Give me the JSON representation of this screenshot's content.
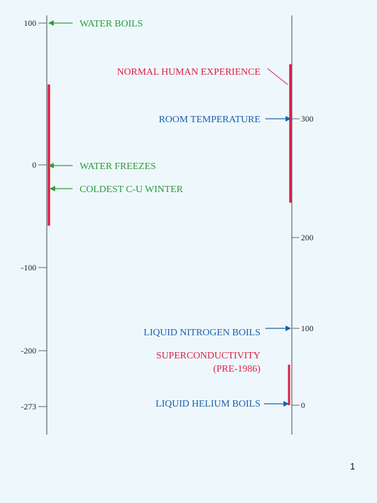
{
  "colors": {
    "green": "#2e9a3f",
    "blue": "#1b5fb0",
    "red": "#dd1f44",
    "axis": "#666666",
    "background": "#eef8fc"
  },
  "celsius_scale": {
    "ticks": [
      "100",
      "0",
      "-100",
      "-200",
      "-273"
    ],
    "labels": {
      "water_boils": "WATER BOILS",
      "water_freezes": "WATER FREEZES",
      "coldest_winter": "COLDEST C-U WINTER"
    }
  },
  "kelvin_scale": {
    "ticks": [
      "300",
      "200",
      "100",
      "0"
    ],
    "labels": {
      "normal_human_experience": "NORMAL HUMAN EXPERIENCE",
      "room_temperature": "ROOM TEMPERATURE",
      "liquid_nitrogen_boils": "LIQUID NITROGEN BOILS",
      "superconductivity": "SUPERCONDUCTIVITY",
      "superconductivity_note": "(PRE-1986)",
      "liquid_helium_boils": "LIQUID HELIUM BOILS"
    }
  },
  "slide_number": "1"
}
